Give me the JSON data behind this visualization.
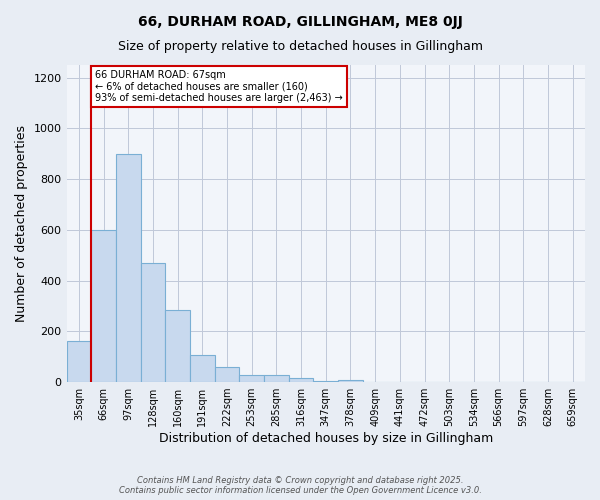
{
  "title": "66, DURHAM ROAD, GILLINGHAM, ME8 0JJ",
  "subtitle": "Size of property relative to detached houses in Gillingham",
  "xlabel": "Distribution of detached houses by size in Gillingham",
  "ylabel": "Number of detached properties",
  "bin_labels": [
    "35sqm",
    "66sqm",
    "97sqm",
    "128sqm",
    "160sqm",
    "191sqm",
    "222sqm",
    "253sqm",
    "285sqm",
    "316sqm",
    "347sqm",
    "378sqm",
    "409sqm",
    "441sqm",
    "472sqm",
    "503sqm",
    "534sqm",
    "566sqm",
    "597sqm",
    "628sqm",
    "659sqm"
  ],
  "bar_values": [
    160,
    600,
    900,
    470,
    285,
    105,
    60,
    28,
    28,
    15,
    5,
    10,
    1,
    0,
    0,
    0,
    0,
    0,
    0,
    0,
    0
  ],
  "bar_color": "#c8d9ee",
  "bar_edge_color": "#7aafd4",
  "property_line_color": "#cc0000",
  "annotation_title": "66 DURHAM ROAD: 67sqm",
  "annotation_line1": "← 6% of detached houses are smaller (160)",
  "annotation_line2": "93% of semi-detached houses are larger (2,463) →",
  "annotation_box_color": "#cc0000",
  "ylim": [
    0,
    1250
  ],
  "yticks": [
    0,
    200,
    400,
    600,
    800,
    1000,
    1200
  ],
  "footer_line1": "Contains HM Land Registry data © Crown copyright and database right 2025.",
  "footer_line2": "Contains public sector information licensed under the Open Government Licence v3.0.",
  "bg_color": "#e8edf4",
  "plot_bg_color": "#f2f5fa",
  "title_fontsize": 10,
  "subtitle_fontsize": 9
}
